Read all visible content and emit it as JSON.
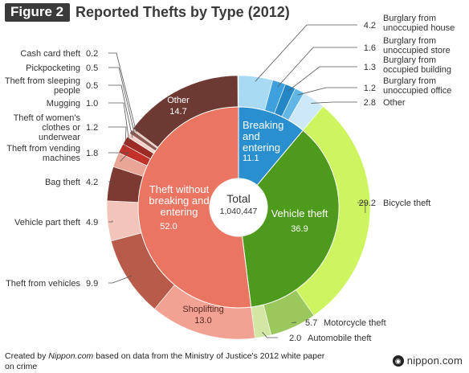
{
  "header": {
    "figure_label": "Figure 2",
    "title": "Reported Thefts by Type (2012)"
  },
  "center": {
    "label": "Total",
    "value": "1,040,447"
  },
  "footer": {
    "text_before": "Created by ",
    "brand": "Nippon.com",
    "text_after": " based on data from the Ministry of Justice's 2012 white paper on crime",
    "logo": "nippon.com"
  },
  "chart_data": {
    "type": "pie",
    "title": "Reported Thefts by Type (2012)",
    "unit": "%",
    "total": "1,040,447",
    "inner": [
      {
        "name": "Breaking and entering",
        "lines": [
          "Breaking",
          "and",
          "entering"
        ],
        "value": 11.1,
        "color": "#2a8fcf"
      },
      {
        "name": "Vehicle theft",
        "lines": [
          "Vehicle theft"
        ],
        "value": 36.9,
        "color": "#4e9a1c"
      },
      {
        "name": "Theft without breaking and entering",
        "lines": [
          "Theft without",
          "breaking and",
          "entering"
        ],
        "value": 52.0,
        "color": "#ea7563"
      }
    ],
    "outer": [
      {
        "name": "Burglary from unoccupied house",
        "lines": [
          "Burglary from",
          "unoccupied house"
        ],
        "value": 4.2,
        "color": "#a9daf4"
      },
      {
        "name": "Burglary from unoccupied store",
        "lines": [
          "Burglary from",
          "unoccupied store"
        ],
        "value": 1.6,
        "color": "#3ea0dc"
      },
      {
        "name": "Burglary from occupied building",
        "lines": [
          "Burglary from",
          "occupied building"
        ],
        "value": 1.3,
        "color": "#2586c6"
      },
      {
        "name": "Burglary from unoccupied office",
        "lines": [
          "Burglary from",
          "unoccupied office"
        ],
        "value": 1.2,
        "color": "#62b6e6"
      },
      {
        "name": "Other",
        "lines": [
          "Other"
        ],
        "value": 2.8,
        "color": "#cde9f7"
      },
      {
        "name": "Bicycle theft",
        "lines": [
          "Bicycle theft"
        ],
        "value": 29.2,
        "color": "#cdf560"
      },
      {
        "name": "Motorcycle theft",
        "lines": [
          "Motorcycle theft"
        ],
        "value": 5.7,
        "color": "#9ac85c"
      },
      {
        "name": "Automobile theft",
        "lines": [
          "Automobile theft"
        ],
        "value": 2.0,
        "color": "#d2e7a4"
      },
      {
        "name": "Shoplifting",
        "lines": [
          "Shoplifting"
        ],
        "value": 13.0,
        "color": "#f1a292"
      },
      {
        "name": "Theft from vehicles",
        "lines": [
          "Theft from vehicles"
        ],
        "value": 9.9,
        "color": "#b85b4b"
      },
      {
        "name": "Vehicle part theft",
        "lines": [
          "Vehicle part theft"
        ],
        "value": 4.9,
        "color": "#f3c4ba"
      },
      {
        "name": "Bag theft",
        "lines": [
          "Bag theft"
        ],
        "value": 4.2,
        "color": "#7d3a32"
      },
      {
        "name": "Theft from vending machines",
        "lines": [
          "Theft from vending",
          "machines"
        ],
        "value": 1.8,
        "color": "#e9a596"
      },
      {
        "name": "Theft of women's clothes or underwear",
        "lines": [
          "Theft of women's",
          "clothes or",
          "underwear"
        ],
        "value": 1.2,
        "color": "#c2322a"
      },
      {
        "name": "Mugging",
        "lines": [
          "Mugging"
        ],
        "value": 1.0,
        "color": "#9d2b25"
      },
      {
        "name": "Theft from sleeping people",
        "lines": [
          "Theft from sleeping",
          "people"
        ],
        "value": 0.5,
        "color": "#f5d3cc"
      },
      {
        "name": "Pickpocketing",
        "lines": [
          "Pickpocketing"
        ],
        "value": 0.5,
        "color": "#8f5a52"
      },
      {
        "name": "Cash card theft",
        "lines": [
          "Cash card theft"
        ],
        "value": 0.2,
        "color": "#e6b8ae"
      },
      {
        "name": "Other",
        "lines": [
          "Other"
        ],
        "value": 14.7,
        "color": "#6d3a33"
      }
    ]
  }
}
